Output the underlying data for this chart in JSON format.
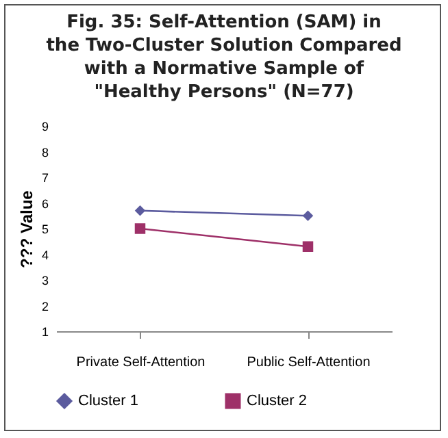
{
  "chart_data": {
    "type": "line",
    "title": "Fig. 35: Self-Attention (SAM) in the Two-Cluster Solution Compared with a Normative Sample of \"Healthy Persons\" (N=77)",
    "ylabel": "??? Value",
    "categories": [
      "Private Self-Attention",
      "Public Self-Attention"
    ],
    "series": [
      {
        "name": "Cluster 1",
        "color": "#5b5b9e",
        "marker": "diamond",
        "values": [
          5.7,
          5.5
        ]
      },
      {
        "name": "Cluster 2",
        "color": "#9e3068",
        "marker": "square",
        "values": [
          5.0,
          4.3
        ]
      }
    ],
    "ylim": [
      1,
      9
    ],
    "yticks": [
      1,
      2,
      3,
      4,
      5,
      6,
      7,
      8,
      9
    ],
    "grid": false,
    "legend": "bottom"
  }
}
